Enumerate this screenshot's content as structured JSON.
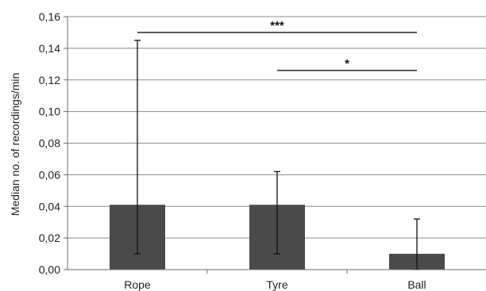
{
  "colors": {
    "bar": "#4a4a4a",
    "grid": "#8c8c8c",
    "text": "#222222"
  },
  "chart_data": {
    "type": "bar",
    "title": "",
    "xlabel": "",
    "ylabel": "Median no. of recordings/min",
    "ylim": [
      0,
      0.16
    ],
    "yticks": [
      0,
      0.02,
      0.04,
      0.06,
      0.08,
      0.1,
      0.12,
      0.14,
      0.16
    ],
    "ytick_labels": [
      "0,00",
      "0,02",
      "0,04",
      "0,06",
      "0,08",
      "0,10",
      "0,12",
      "0,14",
      "0,16"
    ],
    "grid": true,
    "legend": "none",
    "categories": [
      "Rope",
      "Tyre",
      "Ball"
    ],
    "values": [
      0.041,
      0.041,
      0.01
    ],
    "error_bars": [
      {
        "low": 0.01,
        "high": 0.145
      },
      {
        "low": 0.01,
        "high": 0.062
      },
      {
        "low": 0.0,
        "high": 0.032
      }
    ],
    "significance": [
      {
        "from": 0,
        "to": 2,
        "label": "***",
        "y": 0.15
      },
      {
        "from": 1,
        "to": 2,
        "label": "*",
        "y": 0.126
      }
    ]
  }
}
